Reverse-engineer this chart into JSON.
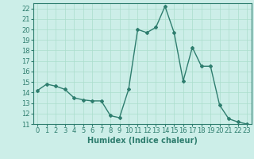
{
  "x": [
    0,
    1,
    2,
    3,
    4,
    5,
    6,
    7,
    8,
    9,
    10,
    11,
    12,
    13,
    14,
    15,
    16,
    17,
    18,
    19,
    20,
    21,
    22,
    23
  ],
  "y": [
    14.2,
    14.8,
    14.6,
    14.3,
    13.5,
    13.3,
    13.2,
    13.2,
    11.8,
    11.6,
    14.3,
    20.0,
    19.7,
    20.2,
    22.2,
    19.7,
    15.1,
    18.3,
    16.5,
    16.5,
    12.8,
    11.5,
    11.2,
    11.0
  ],
  "line_color": "#2e7d6e",
  "marker": "D",
  "markersize": 2,
  "linewidth": 1.0,
  "bg_color": "#cceee8",
  "grid_color": "#aaddcc",
  "tick_color": "#2e7d6e",
  "xlabel": "Humidex (Indice chaleur)",
  "xlabel_fontsize": 7,
  "tick_fontsize": 6,
  "ylim": [
    11,
    22.5
  ],
  "xlim": [
    -0.5,
    23.5
  ],
  "yticks": [
    11,
    12,
    13,
    14,
    15,
    16,
    17,
    18,
    19,
    20,
    21,
    22
  ],
  "xticks": [
    0,
    1,
    2,
    3,
    4,
    5,
    6,
    7,
    8,
    9,
    10,
    11,
    12,
    13,
    14,
    15,
    16,
    17,
    18,
    19,
    20,
    21,
    22,
    23
  ]
}
